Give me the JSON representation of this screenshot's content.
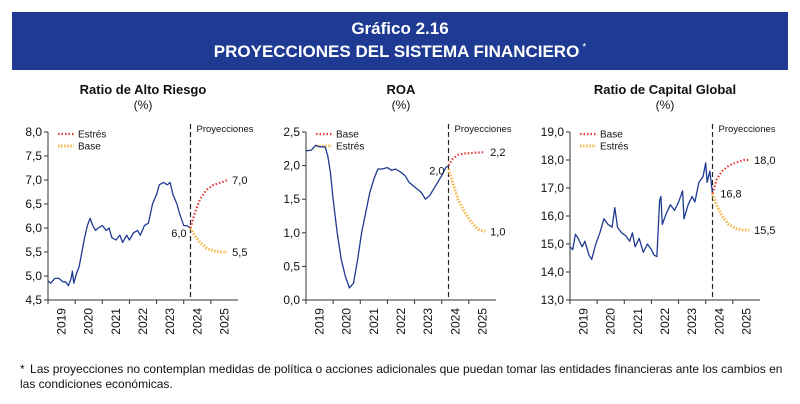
{
  "header": {
    "number": "Gráfico 2.16",
    "title": "PROYECCIONES DEL SISTEMA FINANCIERO",
    "asterisk": "*"
  },
  "footnote": {
    "asterisk": "*",
    "text": "Las proyecciones no contemplan medidas de política o acciones adicionales que puedan tomar las entidades financieras ante los cambios en las condiciones económicas."
  },
  "colors": {
    "banner": "#1f3a93",
    "history": "#1f3a93",
    "stress": "#e53935",
    "base": "#f7b84b"
  },
  "chart_data": [
    {
      "type": "line",
      "title": "Ratio de Alto Riesgo",
      "subtitle": "(%)",
      "ylim": [
        4.5,
        8.0
      ],
      "yticks": [
        "4,5",
        "5,0",
        "5,5",
        "6,0",
        "6,5",
        "7,0",
        "7,5",
        "8,0"
      ],
      "yticks_values": [
        4.5,
        5.0,
        5.5,
        6.0,
        6.5,
        7.0,
        7.5,
        8.0
      ],
      "xlim": [
        2019.0,
        2026.0
      ],
      "xticks": [
        "2019",
        "2020",
        "2021",
        "2022",
        "2023",
        "2024",
        "2025"
      ],
      "projection_label": "Proyecciones",
      "projection_start": 2024.25,
      "legend": [
        {
          "name": "Estrés",
          "style": "stress"
        },
        {
          "name": "Base",
          "style": "base"
        }
      ],
      "series": [
        {
          "name": "Histórico",
          "style": "history",
          "points": [
            [
              2019.0,
              4.9
            ],
            [
              2019.1,
              4.85
            ],
            [
              2019.25,
              4.95
            ],
            [
              2019.4,
              4.95
            ],
            [
              2019.55,
              4.88
            ],
            [
              2019.65,
              4.88
            ],
            [
              2019.75,
              4.8
            ],
            [
              2019.85,
              4.95
            ],
            [
              2019.9,
              5.1
            ],
            [
              2019.95,
              4.85
            ],
            [
              2020.05,
              5.05
            ],
            [
              2020.15,
              5.2
            ],
            [
              2020.25,
              5.5
            ],
            [
              2020.35,
              5.8
            ],
            [
              2020.45,
              6.05
            ],
            [
              2020.55,
              6.2
            ],
            [
              2020.65,
              6.05
            ],
            [
              2020.75,
              5.95
            ],
            [
              2020.85,
              6.0
            ],
            [
              2021.0,
              6.05
            ],
            [
              2021.15,
              5.95
            ],
            [
              2021.25,
              6.0
            ],
            [
              2021.35,
              5.8
            ],
            [
              2021.5,
              5.75
            ],
            [
              2021.65,
              5.85
            ],
            [
              2021.75,
              5.7
            ],
            [
              2021.9,
              5.85
            ],
            [
              2022.0,
              5.75
            ],
            [
              2022.15,
              5.9
            ],
            [
              2022.3,
              5.95
            ],
            [
              2022.4,
              5.85
            ],
            [
              2022.55,
              6.05
            ],
            [
              2022.7,
              6.1
            ],
            [
              2022.85,
              6.5
            ],
            [
              2023.0,
              6.7
            ],
            [
              2023.1,
              6.9
            ],
            [
              2023.25,
              6.95
            ],
            [
              2023.4,
              6.9
            ],
            [
              2023.5,
              6.95
            ],
            [
              2023.6,
              6.7
            ],
            [
              2023.75,
              6.5
            ],
            [
              2023.85,
              6.3
            ],
            [
              2024.0,
              6.05
            ],
            [
              2024.1,
              6.05
            ],
            [
              2024.25,
              6.0
            ]
          ]
        },
        {
          "name": "Estrés",
          "style": "stress",
          "points": [
            [
              2024.25,
              6.0
            ],
            [
              2024.4,
              6.3
            ],
            [
              2024.6,
              6.6
            ],
            [
              2024.85,
              6.8
            ],
            [
              2025.1,
              6.9
            ],
            [
              2025.4,
              6.95
            ],
            [
              2025.6,
              7.0
            ]
          ]
        },
        {
          "name": "Base",
          "style": "base",
          "points": [
            [
              2024.25,
              6.0
            ],
            [
              2024.4,
              5.85
            ],
            [
              2024.6,
              5.7
            ],
            [
              2024.85,
              5.58
            ],
            [
              2025.1,
              5.52
            ],
            [
              2025.4,
              5.5
            ],
            [
              2025.6,
              5.5
            ]
          ]
        }
      ],
      "annotations": [
        {
          "text": "6,0",
          "x": 2024.25,
          "y": 6.0,
          "pos": "left"
        },
        {
          "text": "7,0",
          "x": 2025.6,
          "y": 7.0,
          "pos": "right"
        },
        {
          "text": "5,5",
          "x": 2025.6,
          "y": 5.5,
          "pos": "right"
        }
      ]
    },
    {
      "type": "line",
      "title": "ROA",
      "subtitle": "(%)",
      "ylim": [
        0.0,
        2.5
      ],
      "yticks": [
        "0,0",
        "0,5",
        "1,0",
        "1,5",
        "2,0",
        "2,5"
      ],
      "yticks_values": [
        0.0,
        0.5,
        1.0,
        1.5,
        2.0,
        2.5
      ],
      "xlim": [
        2019.0,
        2026.0
      ],
      "xticks": [
        "2019",
        "2020",
        "2021",
        "2022",
        "2023",
        "2024",
        "2025"
      ],
      "projection_label": "Proyecciones",
      "projection_start": 2024.25,
      "legend": [
        {
          "name": "Base",
          "style": "stress"
        },
        {
          "name": "Estrés",
          "style": "base"
        }
      ],
      "series": [
        {
          "name": "Histórico",
          "style": "history",
          "points": [
            [
              2019.0,
              2.22
            ],
            [
              2019.2,
              2.23
            ],
            [
              2019.35,
              2.3
            ],
            [
              2019.5,
              2.28
            ],
            [
              2019.7,
              2.28
            ],
            [
              2019.8,
              2.15
            ],
            [
              2019.9,
              1.9
            ],
            [
              2020.0,
              1.5
            ],
            [
              2020.15,
              1.0
            ],
            [
              2020.3,
              0.6
            ],
            [
              2020.45,
              0.35
            ],
            [
              2020.6,
              0.18
            ],
            [
              2020.75,
              0.25
            ],
            [
              2020.9,
              0.6
            ],
            [
              2021.05,
              1.0
            ],
            [
              2021.2,
              1.3
            ],
            [
              2021.35,
              1.6
            ],
            [
              2021.5,
              1.8
            ],
            [
              2021.65,
              1.95
            ],
            [
              2021.8,
              1.95
            ],
            [
              2022.0,
              1.97
            ],
            [
              2022.15,
              1.93
            ],
            [
              2022.3,
              1.95
            ],
            [
              2022.5,
              1.9
            ],
            [
              2022.65,
              1.85
            ],
            [
              2022.8,
              1.75
            ],
            [
              2022.95,
              1.7
            ],
            [
              2023.1,
              1.65
            ],
            [
              2023.25,
              1.6
            ],
            [
              2023.4,
              1.5
            ],
            [
              2023.55,
              1.55
            ],
            [
              2023.7,
              1.65
            ],
            [
              2023.85,
              1.75
            ],
            [
              2024.0,
              1.85
            ],
            [
              2024.15,
              1.97
            ],
            [
              2024.25,
              2.0
            ]
          ]
        },
        {
          "name": "Base",
          "style": "stress",
          "points": [
            [
              2024.25,
              2.0
            ],
            [
              2024.4,
              2.1
            ],
            [
              2024.6,
              2.16
            ],
            [
              2024.85,
              2.18
            ],
            [
              2025.2,
              2.19
            ],
            [
              2025.6,
              2.2
            ]
          ]
        },
        {
          "name": "Estrés",
          "style": "base",
          "points": [
            [
              2024.25,
              1.95
            ],
            [
              2024.4,
              1.75
            ],
            [
              2024.6,
              1.5
            ],
            [
              2024.85,
              1.3
            ],
            [
              2025.1,
              1.15
            ],
            [
              2025.35,
              1.05
            ],
            [
              2025.6,
              1.02
            ]
          ]
        }
      ],
      "annotations": [
        {
          "text": "2,0",
          "x": 2024.25,
          "y": 2.0,
          "pos": "left"
        },
        {
          "text": "2,2",
          "x": 2025.6,
          "y": 2.2,
          "pos": "right"
        },
        {
          "text": "1,0",
          "x": 2025.6,
          "y": 1.02,
          "pos": "right"
        }
      ]
    },
    {
      "type": "line",
      "title": "Ratio de Capital Global",
      "subtitle": "(%)",
      "ylim": [
        13.0,
        19.0
      ],
      "yticks": [
        "13,0",
        "14,0",
        "15,0",
        "16,0",
        "17,0",
        "18,0",
        "19,0"
      ],
      "yticks_values": [
        13.0,
        14.0,
        15.0,
        16.0,
        17.0,
        18.0,
        19.0
      ],
      "xlim": [
        2019.0,
        2026.0
      ],
      "xticks": [
        "2019",
        "2020",
        "2021",
        "2022",
        "2023",
        "2024",
        "2025"
      ],
      "projection_label": "Proyecciones",
      "projection_start": 2024.25,
      "legend": [
        {
          "name": "Base",
          "style": "stress"
        },
        {
          "name": "Estrés",
          "style": "base"
        }
      ],
      "series": [
        {
          "name": "Histórico",
          "style": "history",
          "points": [
            [
              2019.0,
              14.9
            ],
            [
              2019.1,
              14.8
            ],
            [
              2019.2,
              15.35
            ],
            [
              2019.3,
              15.2
            ],
            [
              2019.45,
              14.9
            ],
            [
              2019.55,
              15.1
            ],
            [
              2019.7,
              14.6
            ],
            [
              2019.8,
              14.45
            ],
            [
              2019.95,
              15.0
            ],
            [
              2020.1,
              15.4
            ],
            [
              2020.25,
              15.9
            ],
            [
              2020.4,
              15.7
            ],
            [
              2020.55,
              15.6
            ],
            [
              2020.65,
              16.3
            ],
            [
              2020.75,
              15.6
            ],
            [
              2020.9,
              15.4
            ],
            [
              2021.05,
              15.3
            ],
            [
              2021.2,
              15.1
            ],
            [
              2021.3,
              15.4
            ],
            [
              2021.4,
              14.9
            ],
            [
              2021.55,
              15.2
            ],
            [
              2021.7,
              14.7
            ],
            [
              2021.85,
              15.0
            ],
            [
              2022.0,
              14.8
            ],
            [
              2022.1,
              14.6
            ],
            [
              2022.2,
              14.55
            ],
            [
              2022.3,
              16.55
            ],
            [
              2022.35,
              16.7
            ],
            [
              2022.4,
              15.7
            ],
            [
              2022.55,
              16.1
            ],
            [
              2022.7,
              16.4
            ],
            [
              2022.85,
              16.2
            ],
            [
              2023.0,
              16.5
            ],
            [
              2023.15,
              16.9
            ],
            [
              2023.2,
              15.9
            ],
            [
              2023.35,
              16.4
            ],
            [
              2023.5,
              16.7
            ],
            [
              2023.6,
              16.5
            ],
            [
              2023.75,
              17.2
            ],
            [
              2023.9,
              17.4
            ],
            [
              2024.0,
              17.9
            ],
            [
              2024.05,
              17.2
            ],
            [
              2024.15,
              17.6
            ],
            [
              2024.25,
              16.8
            ]
          ]
        },
        {
          "name": "Base",
          "style": "stress",
          "points": [
            [
              2024.25,
              16.8
            ],
            [
              2024.4,
              17.3
            ],
            [
              2024.6,
              17.6
            ],
            [
              2024.85,
              17.8
            ],
            [
              2025.1,
              17.9
            ],
            [
              2025.4,
              18.0
            ],
            [
              2025.6,
              18.0
            ]
          ]
        },
        {
          "name": "Estrés",
          "style": "base",
          "points": [
            [
              2024.25,
              16.8
            ],
            [
              2024.4,
              16.4
            ],
            [
              2024.6,
              16.0
            ],
            [
              2024.85,
              15.7
            ],
            [
              2025.1,
              15.55
            ],
            [
              2025.35,
              15.5
            ],
            [
              2025.6,
              15.5
            ]
          ]
        }
      ],
      "annotations": [
        {
          "text": "16,8",
          "x": 2024.35,
          "y": 16.8,
          "pos": "right"
        },
        {
          "text": "18,0",
          "x": 2025.6,
          "y": 18.0,
          "pos": "right"
        },
        {
          "text": "15,5",
          "x": 2025.6,
          "y": 15.5,
          "pos": "right"
        }
      ]
    }
  ]
}
